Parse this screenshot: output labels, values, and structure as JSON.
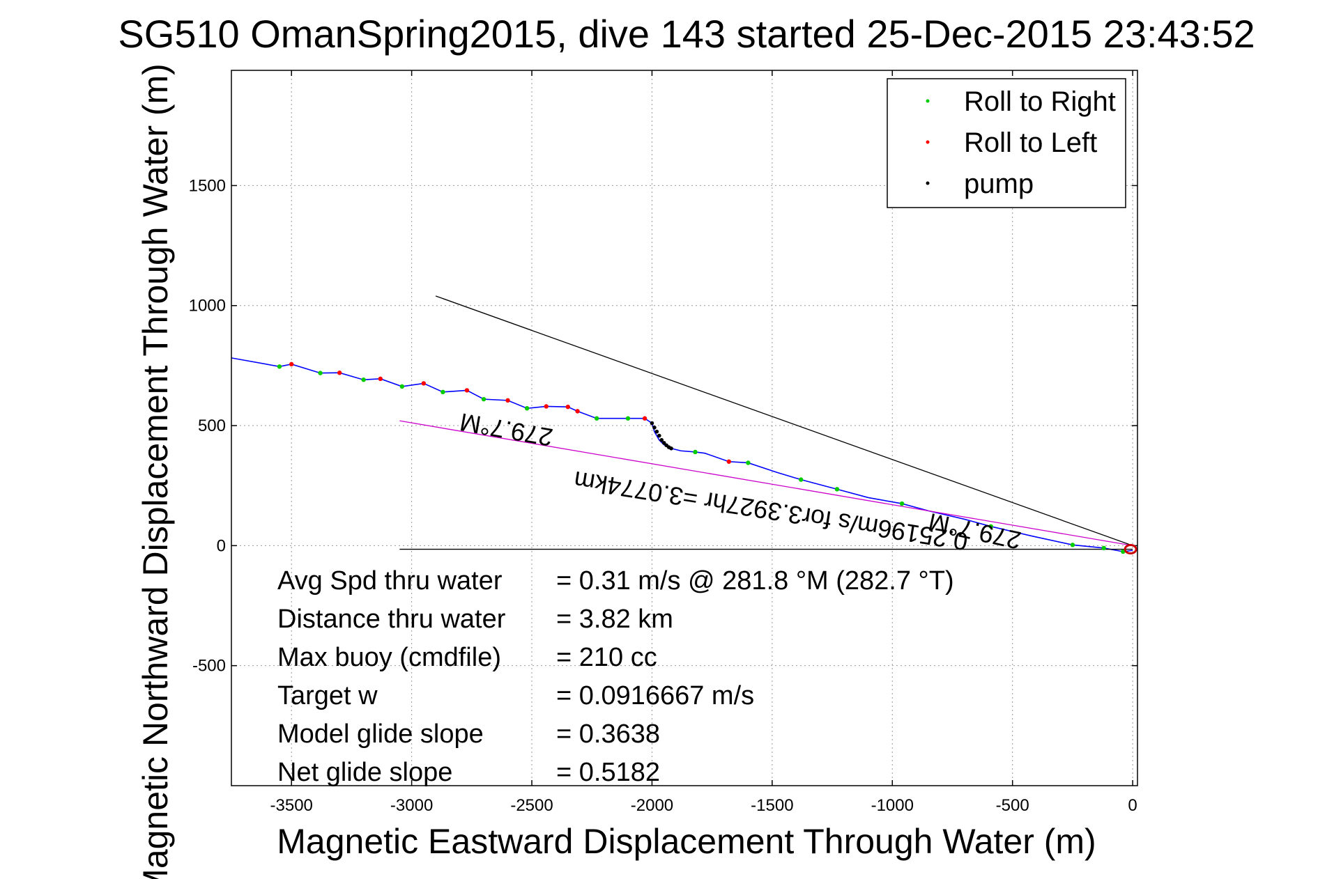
{
  "chart_data": {
    "type": "line",
    "title": "SG510 OmanSpring2015, dive 143 started 25-Dec-2015 23:43:52",
    "xlabel": "Magnetic Eastward Displacement Through Water (m)",
    "ylabel": "Magnetic Northward Displacement Through Water (m)",
    "xlim": [
      -3750,
      20
    ],
    "ylim": [
      -1000,
      1980
    ],
    "xticks": [
      -3500,
      -3000,
      -2500,
      -2000,
      -1500,
      -1000,
      -500,
      0
    ],
    "yticks": [
      -500,
      0,
      500,
      1000,
      1500
    ],
    "grid": true,
    "legend_position": "top-right",
    "colors": {
      "track": "#0000ff",
      "roll_right": "#00cc00",
      "roll_left": "#ff0000",
      "pump": "#000000",
      "avg_line": "#000000",
      "net_line": "#cc00cc",
      "surface_marker": "#cc0000"
    },
    "legend": [
      {
        "label": "Roll to Right",
        "color": "#00cc00"
      },
      {
        "label": "Roll to Left",
        "color": "#ff0000"
      },
      {
        "label": "pump",
        "color": "#000000"
      }
    ],
    "series": [
      {
        "kind": "track",
        "x": [
          -3750,
          -3550,
          -3500,
          -3380,
          -3300,
          -3200,
          -3130,
          -3040,
          -2950,
          -2870,
          -2770,
          -2700,
          -2600,
          -2520,
          -2440,
          -2350,
          -2310,
          -2230,
          -2100,
          -2030,
          -2000,
          -1990,
          -1970,
          -1950,
          -1920,
          -1880,
          -1820,
          -1780,
          -1680,
          -1600,
          -1480,
          -1380,
          -1230,
          -1100,
          -960,
          -850,
          -700,
          -590,
          -420,
          -250,
          -120,
          -40,
          0
        ],
        "y": [
          782,
          746,
          756,
          719,
          720,
          691,
          695,
          663,
          676,
          640,
          647,
          610,
          605,
          572,
          580,
          578,
          560,
          530,
          530,
          530,
          510,
          475,
          440,
          420,
          405,
          395,
          390,
          385,
          350,
          345,
          305,
          275,
          235,
          200,
          175,
          145,
          110,
          80,
          40,
          3,
          -10,
          -25,
          -20
        ]
      },
      {
        "kind": "roll_right",
        "x": [
          -3550,
          -3380,
          -3200,
          -3040,
          -2870,
          -2700,
          -2520,
          -2230,
          -2100,
          -1820,
          -1600,
          -1380,
          -1230,
          -960,
          -590,
          -250,
          -120,
          -40
        ],
        "y": [
          746,
          719,
          691,
          663,
          640,
          610,
          572,
          530,
          530,
          390,
          345,
          275,
          235,
          175,
          80,
          3,
          -10,
          -25
        ]
      },
      {
        "kind": "roll_left",
        "x": [
          -3500,
          -3300,
          -3130,
          -2950,
          -2770,
          -2600,
          -2440,
          -2350,
          -2310,
          -2030,
          -1680
        ],
        "y": [
          756,
          720,
          695,
          676,
          647,
          605,
          580,
          578,
          560,
          530,
          350
        ]
      },
      {
        "kind": "pump",
        "x": [
          -2000,
          -1990,
          -1980,
          -1970,
          -1960,
          -1950,
          -1940,
          -1930,
          -1920
        ],
        "y": [
          510,
          492,
          475,
          458,
          440,
          428,
          418,
          410,
          405
        ]
      },
      {
        "kind": "avg_line",
        "x": [
          0,
          -2900
        ],
        "y": [
          0,
          1040
        ]
      },
      {
        "kind": "net_line",
        "x": [
          0,
          -3050
        ],
        "y": [
          0,
          520
        ]
      },
      {
        "kind": "baseline",
        "x": [
          0,
          -3050
        ],
        "y": [
          -15,
          -15
        ]
      }
    ],
    "annotations": [
      {
        "text": "279.7°M",
        "x": -2600,
        "y": 518,
        "rotate": 190
      },
      {
        "text": "0.25196m/s for3.3927hr =3.0774km",
        "x": -1500,
        "y": 180,
        "rotate": 189
      },
      {
        "text": "279.7°M",
        "x": -650,
        "y": 95,
        "rotate": 192
      }
    ],
    "stats": [
      {
        "label": "Avg Spd thru water",
        "value": "=  0.31 m/s @ 281.8 °M (282.7 °T)"
      },
      {
        "label": "Distance thru water",
        "value": "=  3.82 km"
      },
      {
        "label": "Max buoy (cmdfile)",
        "value": "= 210 cc"
      },
      {
        "label": "Target w",
        "value": "= 0.0916667 m/s"
      },
      {
        "label": "Model glide slope",
        "value": "= 0.3638"
      },
      {
        "label": "Net glide slope",
        "value": "= 0.5182"
      }
    ]
  }
}
